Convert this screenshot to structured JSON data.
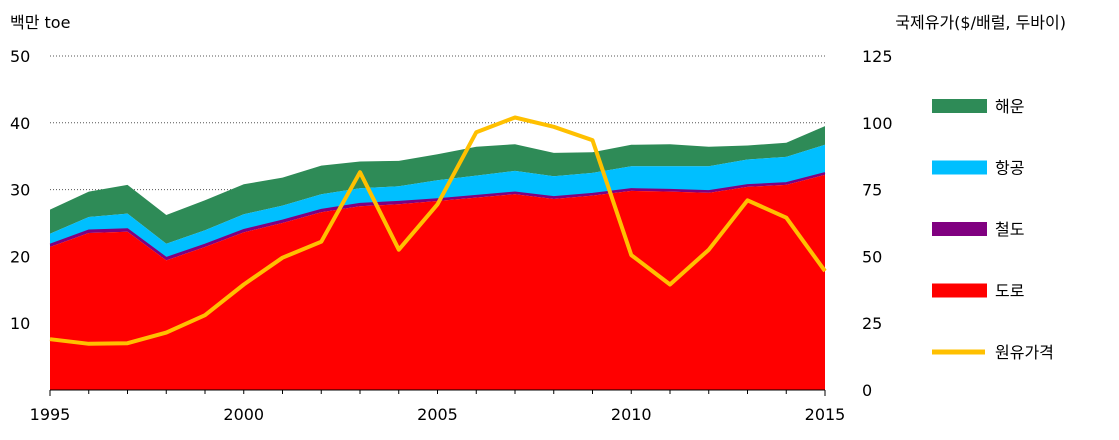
{
  "chart_data": {
    "type": "area",
    "left_axis_title": "백만 toe",
    "right_axis_title": "국제유가($/배럴, 두바이)",
    "x": [
      1995,
      1996,
      1997,
      1998,
      1999,
      2000,
      2001,
      2002,
      2003,
      2004,
      2005,
      2006,
      2007,
      2008,
      2009,
      2010,
      2011,
      2012,
      2013,
      2014,
      2015
    ],
    "x_ticks": [
      "1995",
      "2000",
      "2005",
      "2010",
      "2015"
    ],
    "x_tick_values": [
      1995,
      2000,
      2005,
      2010,
      2015
    ],
    "ylim": [
      0,
      50
    ],
    "y_ticks": [
      "10",
      "20",
      "30",
      "40",
      "50"
    ],
    "y_tick_values": [
      10,
      20,
      30,
      40,
      50
    ],
    "y2lim": [
      0,
      125
    ],
    "y2_ticks": [
      "0",
      "25",
      "50",
      "75",
      "100",
      "125"
    ],
    "y2_tick_values": [
      0,
      25,
      50,
      75,
      100,
      125
    ],
    "grid": "horizontal dotted",
    "legend_position": "right",
    "stack_order": [
      "road",
      "rail",
      "air",
      "sea"
    ],
    "series": [
      {
        "key": "sea",
        "name": "해운",
        "color": "#2e8b57",
        "kind": "area",
        "values": [
          3.6,
          3.8,
          4.3,
          4.3,
          4.5,
          4.5,
          4.2,
          4.3,
          4.0,
          3.8,
          3.9,
          4.3,
          4.0,
          3.5,
          3.1,
          3.2,
          3.3,
          2.9,
          2.1,
          2.1,
          2.8
        ]
      },
      {
        "key": "air",
        "name": "항공",
        "color": "#00bfff",
        "kind": "area",
        "values": [
          1.6,
          2.0,
          2.3,
          2.1,
          2.1,
          2.3,
          2.2,
          2.3,
          2.3,
          2.3,
          2.8,
          3.0,
          3.2,
          3.1,
          3.1,
          3.4,
          3.5,
          3.7,
          3.8,
          3.9,
          4.2
        ]
      },
      {
        "key": "rail",
        "name": "철도",
        "color": "#800080",
        "kind": "area",
        "values": [
          0.4,
          0.4,
          0.4,
          0.4,
          0.4,
          0.4,
          0.4,
          0.4,
          0.4,
          0.4,
          0.3,
          0.3,
          0.3,
          0.3,
          0.3,
          0.3,
          0.3,
          0.3,
          0.3,
          0.3,
          0.3
        ]
      },
      {
        "key": "road",
        "name": "도로",
        "color": "#ff0000",
        "kind": "area",
        "values": [
          21.4,
          23.5,
          23.7,
          19.4,
          21.4,
          23.6,
          25.0,
          26.6,
          27.5,
          27.8,
          28.3,
          28.8,
          29.3,
          28.6,
          29.1,
          29.8,
          29.7,
          29.5,
          30.4,
          30.7,
          32.2
        ]
      },
      {
        "key": "oil",
        "name": "원유가격",
        "color": "#ffc000",
        "kind": "line",
        "axis": "right",
        "values": [
          19.0,
          17.3,
          17.5,
          21.5,
          28.0,
          39.5,
          49.5,
          55.5,
          81.5,
          52.5,
          69.5,
          96.5,
          102.0,
          98.5,
          93.5,
          50.5,
          39.5,
          52.5,
          71.0,
          64.5,
          44.5
        ]
      }
    ]
  }
}
